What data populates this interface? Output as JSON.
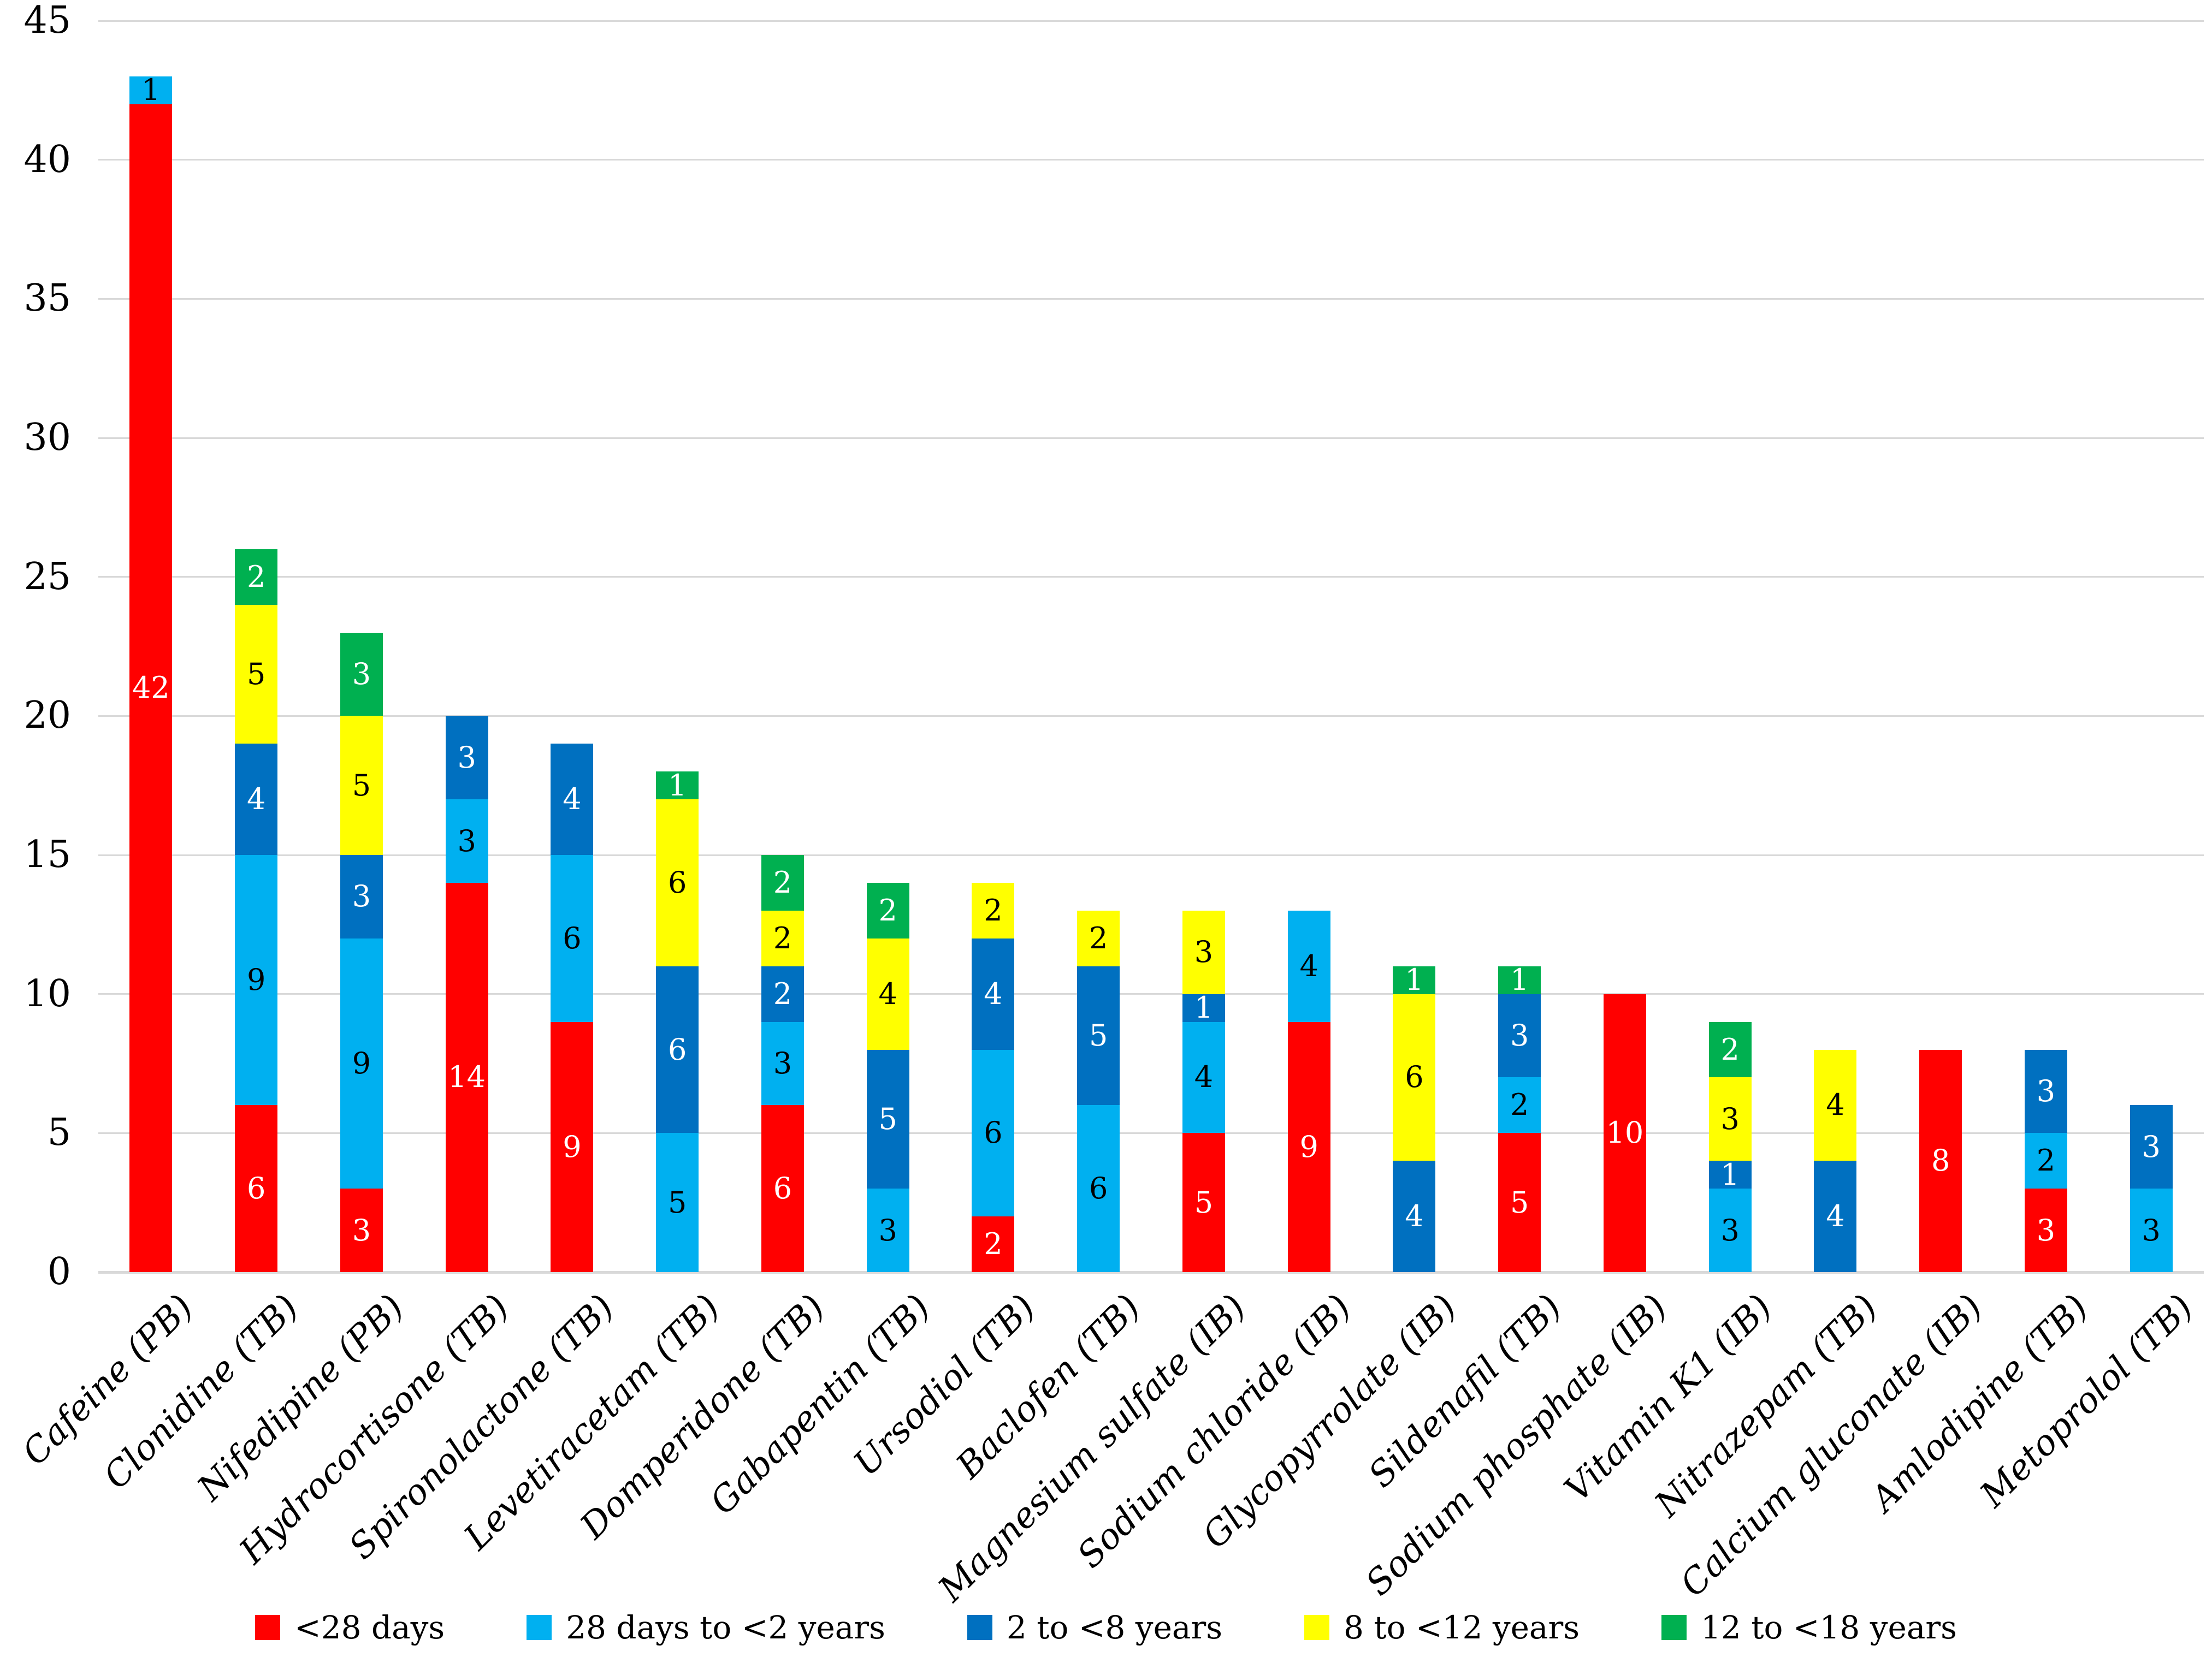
{
  "chart_data": {
    "type": "bar",
    "stacked": true,
    "title": "",
    "xlabel": "",
    "ylabel": "",
    "grid": true,
    "legend_position": "bottom",
    "background_color": "#ffffff",
    "gridline_color": "#d9d9d9",
    "y_axis": {
      "min": 0,
      "max": 45,
      "step": 5,
      "ticks": [
        "0",
        "5",
        "10",
        "15",
        "20",
        "25",
        "30",
        "35",
        "40",
        "45"
      ]
    },
    "categories": [
      "Cafeine (PB)",
      "Clonidine (TB)",
      "Nifedipine (PB)",
      "Hydrocortisone (TB)",
      "Spironolactone (TB)",
      "Levetiracetam (TB)",
      "Domperidone (TB)",
      "Gabapentin (TB)",
      "Ursodiol (TB)",
      "Baclofen (TB)",
      "Magnesium sulfate (IB)",
      "Sodium chloride (IB)",
      "Glycopyrrolate (IB)",
      "Sildenafil (TB)",
      "Sodium phosphate (IB)",
      "Vitamin K1 (IB)",
      "Nitrazepam (TB)",
      "Calcium gluconate (IB)",
      "Amlodipine (TB)",
      "Metoprolol (TB)"
    ],
    "series": [
      {
        "name": "<28 days",
        "color": "#ff0000",
        "label_color": "#ffffff",
        "values": [
          42,
          6,
          3,
          14,
          9,
          0,
          6,
          0,
          2,
          0,
          5,
          9,
          0,
          5,
          10,
          0,
          0,
          8,
          3,
          0
        ]
      },
      {
        "name": "28 days to <2 years",
        "color": "#00b0f0",
        "label_color": "#000000",
        "values": [
          1,
          9,
          9,
          3,
          6,
          5,
          3,
          3,
          6,
          6,
          4,
          4,
          0,
          2,
          0,
          3,
          0,
          0,
          2,
          3
        ]
      },
      {
        "name": "2 to <8 years",
        "color": "#0070c0",
        "label_color": "#ffffff",
        "values": [
          0,
          4,
          3,
          3,
          4,
          6,
          2,
          5,
          4,
          5,
          1,
          0,
          4,
          3,
          0,
          1,
          4,
          0,
          3,
          3
        ]
      },
      {
        "name": "8 to <12 years",
        "color": "#ffff00",
        "label_color": "#000000",
        "values": [
          0,
          5,
          5,
          0,
          0,
          6,
          2,
          4,
          2,
          2,
          3,
          0,
          6,
          0,
          0,
          3,
          4,
          0,
          0,
          0
        ]
      },
      {
        "name": "12 to <18 years",
        "color": "#00b050",
        "label_color": "#ffffff",
        "values": [
          0,
          2,
          3,
          0,
          0,
          1,
          2,
          2,
          0,
          0,
          0,
          0,
          1,
          1,
          0,
          2,
          0,
          0,
          0,
          0
        ]
      }
    ]
  }
}
